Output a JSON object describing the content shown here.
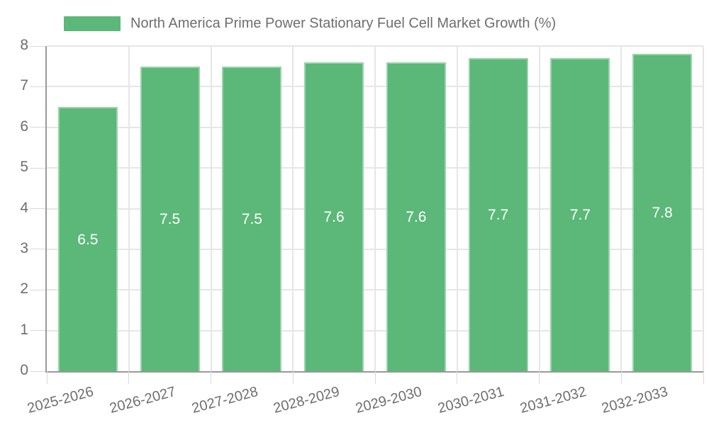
{
  "chart_data": {
    "type": "bar",
    "title": "North America Prime Power Stationary Fuel Cell Market Growth (%)",
    "categories": [
      "2025-2026",
      "2026-2027",
      "2027-2028",
      "2028-2029",
      "2029-2030",
      "2030-2031",
      "2031-2032",
      "2032-2033"
    ],
    "values": [
      6.5,
      7.5,
      7.5,
      7.6,
      7.6,
      7.7,
      7.7,
      7.8
    ],
    "xlabel": "",
    "ylabel": "",
    "ylim": [
      0,
      8
    ],
    "ytick_step": 1,
    "yticks": [
      "0",
      "1",
      "2",
      "3",
      "4",
      "5",
      "6",
      "7",
      "8"
    ],
    "grid": "on",
    "legend_position": "top-left",
    "value_labels": "inside-center",
    "colors": {
      "bar_fill": "#5BB878",
      "bar_value_text": "#ffffff",
      "grid_line": "#e6e6e6",
      "axis_line": "#999999",
      "tick_mark": "#d9d9d9",
      "axis_text": "#6e6e6e",
      "title_text": "#6e6e6e"
    }
  }
}
